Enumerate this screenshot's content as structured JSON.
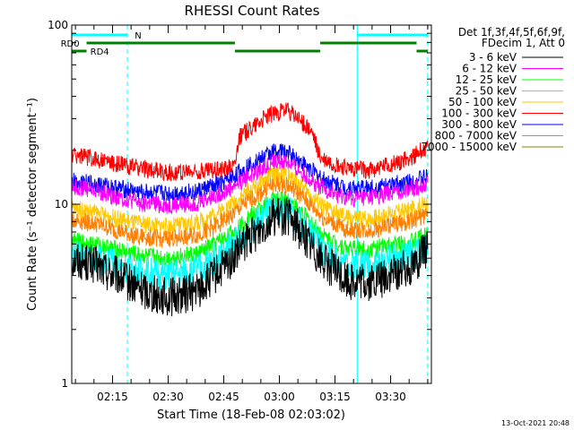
{
  "footer": {
    "timestamp": "13-Oct-2021 20:48"
  },
  "chart_data": {
    "type": "line",
    "title": "RHESSI Count Rates",
    "xlabel": "Start Time (18-Feb-08 02:03:02)",
    "ylabel": "Count Rate (s⁻¹ detector segment⁻¹)",
    "y_scale": "log",
    "ylim": [
      1,
      100
    ],
    "xlim": [
      "02:04",
      "03:41"
    ],
    "y_ticks": [
      {
        "value": 1,
        "label": "1"
      },
      {
        "value": 10,
        "label": "10"
      },
      {
        "value": 100,
        "label": "100"
      }
    ],
    "x_ticks": [
      {
        "value": "02:15",
        "label": "02:15"
      },
      {
        "value": "02:30",
        "label": "02:30"
      },
      {
        "value": "02:45",
        "label": "02:45"
      },
      {
        "value": "03:00",
        "label": "03:00"
      },
      {
        "value": "03:15",
        "label": "03:15"
      },
      {
        "value": "03:30",
        "label": "03:30"
      }
    ],
    "grid": false,
    "legend": {
      "placement": "right",
      "header": [
        "Det 1f,3f,4f,5f,6f,9f,",
        "FDecim 1, Att 0"
      ]
    },
    "series": [
      {
        "name": "3 - 6 keV",
        "color": "#000000",
        "points": [
          [
            "02:04",
            5.0
          ],
          [
            "02:10",
            4.6
          ],
          [
            "02:16",
            4.0
          ],
          [
            "02:22",
            3.4
          ],
          [
            "02:30",
            3.0
          ],
          [
            "02:38",
            3.3
          ],
          [
            "02:46",
            4.6
          ],
          [
            "02:52",
            6.5
          ],
          [
            "02:58",
            8.5
          ],
          [
            "03:02",
            8.6
          ],
          [
            "03:06",
            7.0
          ],
          [
            "03:12",
            4.8
          ],
          [
            "03:18",
            3.8
          ],
          [
            "03:24",
            3.6
          ],
          [
            "03:30",
            4.0
          ],
          [
            "03:36",
            4.6
          ],
          [
            "03:40",
            5.6
          ]
        ]
      },
      {
        "name": "6 - 12 keV",
        "color": "#ff00ff",
        "points": [
          [
            "02:04",
            12.5
          ],
          [
            "02:10",
            12.0
          ],
          [
            "02:16",
            11.0
          ],
          [
            "02:22",
            10.2
          ],
          [
            "02:30",
            9.8
          ],
          [
            "02:38",
            10.2
          ],
          [
            "02:46",
            12.0
          ],
          [
            "02:52",
            14.5
          ],
          [
            "02:58",
            17.0
          ],
          [
            "03:02",
            17.2
          ],
          [
            "03:06",
            15.0
          ],
          [
            "03:12",
            12.0
          ],
          [
            "03:18",
            10.8
          ],
          [
            "03:24",
            10.8
          ],
          [
            "03:30",
            11.5
          ],
          [
            "03:36",
            12.2
          ],
          [
            "03:40",
            13.2
          ]
        ]
      },
      {
        "name": "12 - 25 keV",
        "color": "#00ff00",
        "points": [
          [
            "02:04",
            6.2
          ],
          [
            "02:10",
            6.0
          ],
          [
            "02:16",
            5.6
          ],
          [
            "02:22",
            5.2
          ],
          [
            "02:30",
            5.0
          ],
          [
            "02:38",
            5.3
          ],
          [
            "02:46",
            6.6
          ],
          [
            "02:52",
            8.5
          ],
          [
            "02:58",
            10.5
          ],
          [
            "03:02",
            10.7
          ],
          [
            "03:06",
            9.0
          ],
          [
            "03:12",
            6.6
          ],
          [
            "03:18",
            5.7
          ],
          [
            "03:24",
            5.6
          ],
          [
            "03:30",
            5.9
          ],
          [
            "03:36",
            6.2
          ],
          [
            "03:40",
            6.8
          ]
        ]
      },
      {
        "name": "25 - 50 keV",
        "color": "#00ffff",
        "points": [
          [
            "02:04",
            5.2
          ],
          [
            "02:10",
            5.0
          ],
          [
            "02:16",
            4.6
          ],
          [
            "02:22",
            4.2
          ],
          [
            "02:30",
            4.0
          ],
          [
            "02:38",
            4.3
          ],
          [
            "02:46",
            5.5
          ],
          [
            "02:52",
            7.3
          ],
          [
            "02:58",
            9.2
          ],
          [
            "03:02",
            9.3
          ],
          [
            "03:06",
            7.8
          ],
          [
            "03:12",
            5.6
          ],
          [
            "03:18",
            4.7
          ],
          [
            "03:24",
            4.6
          ],
          [
            "03:30",
            4.9
          ],
          [
            "03:36",
            5.2
          ],
          [
            "03:40",
            5.8
          ]
        ]
      },
      {
        "name": "50 - 100 keV",
        "color": "#ffc800",
        "points": [
          [
            "02:04",
            9.5
          ],
          [
            "02:10",
            9.0
          ],
          [
            "02:16",
            8.3
          ],
          [
            "02:22",
            7.8
          ],
          [
            "02:30",
            7.5
          ],
          [
            "02:38",
            7.9
          ],
          [
            "02:46",
            9.6
          ],
          [
            "02:52",
            12.0
          ],
          [
            "02:58",
            14.5
          ],
          [
            "03:02",
            14.7
          ],
          [
            "03:06",
            12.5
          ],
          [
            "03:12",
            9.6
          ],
          [
            "03:18",
            8.4
          ],
          [
            "03:24",
            8.3
          ],
          [
            "03:30",
            8.8
          ],
          [
            "03:36",
            9.4
          ],
          [
            "03:40",
            10.2
          ]
        ]
      },
      {
        "name": "100 - 300 keV",
        "color": "#ff0000",
        "points": [
          [
            "02:04",
            19.0
          ],
          [
            "02:10",
            18.0
          ],
          [
            "02:16",
            16.8
          ],
          [
            "02:22",
            16.0
          ],
          [
            "02:30",
            15.0
          ],
          [
            "02:38",
            15.2
          ],
          [
            "02:44",
            15.8
          ],
          [
            "02:48",
            16.5
          ],
          [
            "02:49",
            23.5
          ],
          [
            "02:54",
            28.5
          ],
          [
            "02:58",
            32.0
          ],
          [
            "03:02",
            33.5
          ],
          [
            "03:06",
            29.0
          ],
          [
            "03:09",
            24.5
          ],
          [
            "03:11",
            18.0
          ],
          [
            "03:18",
            15.8
          ],
          [
            "03:24",
            15.5
          ],
          [
            "03:30",
            16.5
          ],
          [
            "03:36",
            18.5
          ],
          [
            "03:40",
            21.0
          ]
        ]
      },
      {
        "name": "300 - 800 keV",
        "color": "#0000ff",
        "points": [
          [
            "02:04",
            13.5
          ],
          [
            "02:10",
            13.0
          ],
          [
            "02:16",
            12.3
          ],
          [
            "02:22",
            11.7
          ],
          [
            "02:30",
            11.4
          ],
          [
            "02:38",
            11.8
          ],
          [
            "02:46",
            13.5
          ],
          [
            "02:52",
            16.5
          ],
          [
            "02:58",
            19.5
          ],
          [
            "03:02",
            19.7
          ],
          [
            "03:06",
            17.0
          ],
          [
            "03:12",
            13.6
          ],
          [
            "03:18",
            12.3
          ],
          [
            "03:24",
            12.2
          ],
          [
            "03:30",
            12.8
          ],
          [
            "03:36",
            13.4
          ],
          [
            "03:40",
            14.2
          ]
        ]
      },
      {
        "name": "800 - 7000 keV",
        "color": "#ff8000",
        "points": [
          [
            "02:04",
            8.2
          ],
          [
            "02:10",
            7.8
          ],
          [
            "02:16",
            7.1
          ],
          [
            "02:22",
            6.6
          ],
          [
            "02:30",
            6.4
          ],
          [
            "02:38",
            6.7
          ],
          [
            "02:46",
            8.3
          ],
          [
            "02:52",
            10.5
          ],
          [
            "02:58",
            12.8
          ],
          [
            "03:02",
            12.9
          ],
          [
            "03:06",
            11.0
          ],
          [
            "03:12",
            8.3
          ],
          [
            "03:18",
            7.2
          ],
          [
            "03:24",
            7.1
          ],
          [
            "03:30",
            7.6
          ],
          [
            "03:36",
            8.1
          ],
          [
            "03:40",
            8.8
          ]
        ]
      },
      {
        "name": "7000 - 15000 keV",
        "color": "#808000",
        "points": []
      }
    ],
    "vertical_markers": [
      {
        "time": "02:04",
        "style": "solid",
        "color": "#00ffff"
      },
      {
        "time": "02:19",
        "style": "dashed",
        "color": "#00ffff"
      },
      {
        "time": "03:21",
        "style": "solid",
        "color": "#00ffff"
      },
      {
        "time": "03:40",
        "style": "dashed",
        "color": "#00ffff"
      }
    ],
    "flags": [
      {
        "label": "N",
        "color": "#00ffff",
        "level": 1,
        "label_at": "02:21",
        "segments": [
          [
            "02:04",
            "02:19"
          ],
          [
            "03:21",
            "03:40"
          ]
        ]
      },
      {
        "label": "RD0",
        "color": "#008000",
        "level": 2,
        "label_at": "02:01",
        "segments": [
          [
            "02:08",
            "02:48"
          ],
          [
            "03:11",
            "03:37"
          ]
        ]
      },
      {
        "label": "RD4",
        "color": "#008000",
        "level": 3,
        "label_at": "02:09",
        "segments": [
          [
            "02:04",
            "02:08"
          ],
          [
            "02:48",
            "03:11"
          ],
          [
            "03:37",
            "03:40"
          ]
        ]
      }
    ]
  }
}
